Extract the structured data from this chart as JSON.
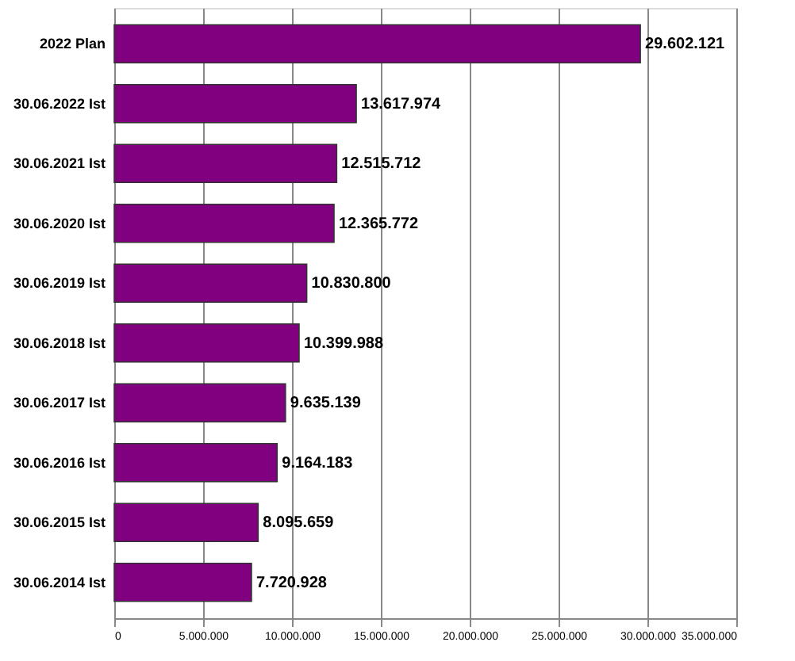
{
  "chart_data": {
    "type": "bar",
    "orientation": "horizontal",
    "categories": [
      "2022  Plan",
      "30.06.2022  Ist",
      "30.06.2021  Ist",
      "30.06.2020  Ist",
      "30.06.2019  Ist",
      "30.06.2018  Ist",
      "30.06.2017  Ist",
      "30.06.2016  Ist",
      "30.06.2015  Ist",
      "30.06.2014  Ist"
    ],
    "values": [
      29602121,
      13617974,
      12515712,
      12365772,
      10830800,
      10399988,
      9635139,
      9164183,
      8095659,
      7720928
    ],
    "value_labels": [
      "29.602.121",
      "13.617.974",
      "12.515.712",
      "12.365.772",
      "10.830.800",
      "10.399.988",
      "9.635.139",
      "9.164.183",
      "8.095.659",
      "7.720.928"
    ],
    "color": "#800080",
    "xlim": [
      0,
      35000000
    ],
    "xticks": [
      0,
      {
        "value": 5000000,
        "label": "5.000.000"
      },
      {
        "value": 10000000,
        "label": "10.000.000"
      },
      {
        "value": 15000000,
        "label": "15.000.000"
      },
      {
        "value": 20000000,
        "label": "20.000.000"
      },
      {
        "value": 25000000,
        "label": "25.000.000"
      },
      {
        "value": 30000000,
        "label": "30.000.000"
      },
      {
        "value": 35000000,
        "label": "35.000.000"
      }
    ],
    "grid": "x"
  }
}
